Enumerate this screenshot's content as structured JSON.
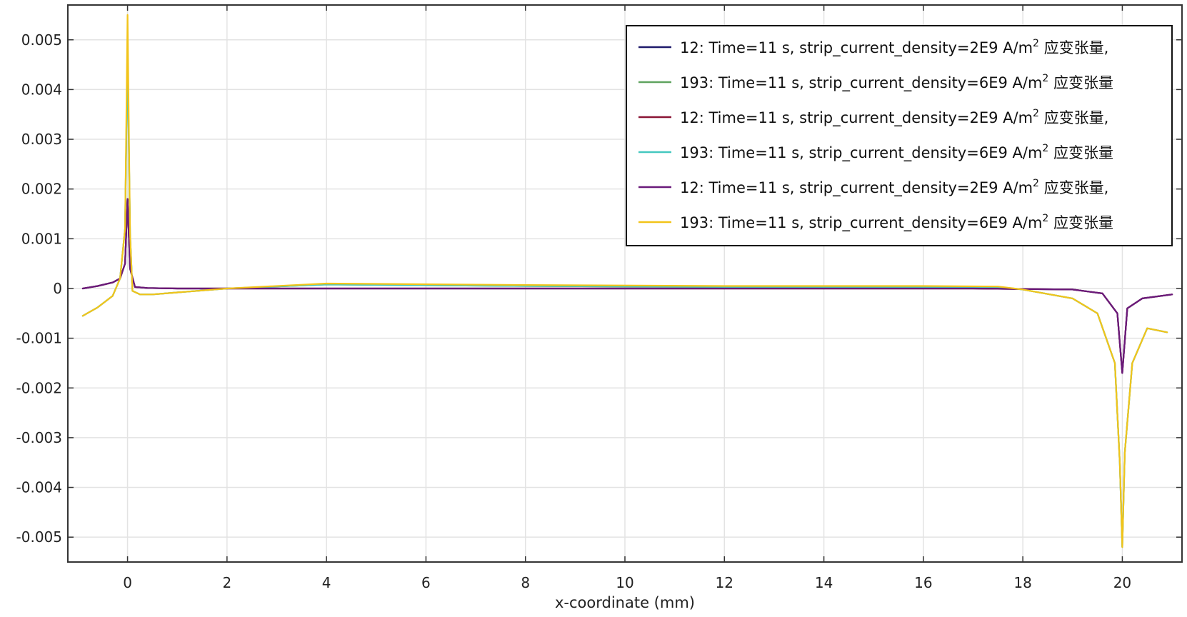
{
  "chart_data": {
    "type": "line",
    "title": "",
    "xlabel": "x-coordinate (mm)",
    "ylabel": "",
    "xlim": [
      -1.2,
      21.2
    ],
    "ylim": [
      -0.0055,
      0.0057
    ],
    "x_ticks": [
      0,
      2,
      4,
      6,
      8,
      10,
      12,
      14,
      16,
      18,
      20
    ],
    "x_tick_labels": [
      "0",
      "2",
      "4",
      "6",
      "8",
      "10",
      "12",
      "14",
      "16",
      "18",
      "20"
    ],
    "y_ticks": [
      0.005,
      0.004,
      0.003,
      0.002,
      0.001,
      0,
      -0.001,
      -0.002,
      -0.003,
      -0.004,
      -0.005
    ],
    "y_tick_labels": [
      "0.005",
      "0.004",
      "0.003",
      "0.002",
      "0.001",
      "0",
      "-0.001",
      "-0.002",
      "-0.003",
      "-0.004",
      "-0.005"
    ],
    "grid": true,
    "legend_position": "top-right",
    "series": [
      {
        "name": "12: Time=11 s, strip_current_density=2E9 A/m",
        "name_sup": "2",
        "name_suffix": " 应变张量,",
        "color": "#1f1a6b",
        "x": [
          -0.9,
          -0.6,
          -0.3,
          -0.15,
          -0.05,
          0,
          0.05,
          0.15,
          0.4,
          1,
          3,
          10,
          17,
          19,
          19.6,
          19.9,
          20,
          20.1,
          20.4,
          21
        ],
        "y": [
          0,
          5e-05,
          0.00012,
          0.0002,
          0.0005,
          0.0018,
          0.0004,
          3e-05,
          1e-05,
          0,
          0,
          0,
          0,
          -2e-05,
          -0.0001,
          -0.0005,
          -0.0017,
          -0.0004,
          -0.0002,
          -0.00012
        ]
      },
      {
        "name": "193: Time=11 s, strip_current_density=6E9 A/m",
        "name_sup": "2",
        "name_suffix": " 应变张量",
        "color": "#5fa35f",
        "x": [
          -0.9,
          -0.6,
          -0.3,
          -0.15,
          -0.05,
          0,
          0.05,
          0.1,
          0.25,
          0.5,
          1,
          2,
          4,
          8,
          12,
          16,
          17.5,
          18,
          19,
          19.5,
          19.85,
          19.95,
          20,
          20.05,
          20.2,
          20.5,
          20.9
        ],
        "y": [
          -0.00055,
          -0.00038,
          -0.00015,
          0.0002,
          0.0012,
          0.0048,
          0.0011,
          -5e-05,
          -0.00012,
          -0.00012,
          -8e-05,
          0,
          8e-05,
          5e-05,
          3e-05,
          3e-05,
          3e-05,
          -2e-05,
          -0.0002,
          -0.0005,
          -0.0015,
          -0.0035,
          -0.0052,
          -0.0033,
          -0.0015,
          -0.0008,
          -0.00088
        ]
      },
      {
        "name": "12: Time=11 s, strip_current_density=2E9 A/m",
        "name_sup": "2",
        "name_suffix": " 应变张量,",
        "color": "#8a1535",
        "x": [
          -0.9,
          -0.6,
          -0.3,
          -0.15,
          -0.05,
          0,
          0.05,
          0.15,
          0.4,
          1,
          3,
          10,
          17,
          19,
          19.6,
          19.9,
          20,
          20.1,
          20.4,
          21
        ],
        "y": [
          0,
          5e-05,
          0.00012,
          0.0002,
          0.0005,
          0.0018,
          0.0004,
          3e-05,
          1e-05,
          0,
          0,
          0,
          0,
          -2e-05,
          -0.0001,
          -0.0005,
          -0.0017,
          -0.0004,
          -0.0002,
          -0.00012
        ]
      },
      {
        "name": "193: Time=11 s, strip_current_density=6E9 A/m",
        "name_sup": "2",
        "name_suffix": " 应变张量",
        "color": "#45c8c0",
        "x": [
          -0.9,
          -0.6,
          -0.3,
          -0.15,
          -0.05,
          0,
          0.05,
          0.1,
          0.25,
          0.5,
          1,
          2,
          4,
          8,
          12,
          16,
          17.5,
          18,
          19,
          19.5,
          19.85,
          19.95,
          20,
          20.05,
          20.2,
          20.5,
          20.9
        ],
        "y": [
          -0.00055,
          -0.00038,
          -0.00015,
          0.0002,
          0.0012,
          0.0048,
          0.0011,
          -5e-05,
          -0.00012,
          -0.00012,
          -8e-05,
          0,
          8e-05,
          5e-05,
          3e-05,
          3e-05,
          3e-05,
          -2e-05,
          -0.0002,
          -0.0005,
          -0.0015,
          -0.0035,
          -0.0052,
          -0.0033,
          -0.0015,
          -0.0008,
          -0.00088
        ]
      },
      {
        "name": "12: Time=11 s, strip_current_density=2E9 A/m",
        "name_sup": "2",
        "name_suffix": " 应变张量,",
        "color": "#6a1a7a",
        "x": [
          -0.9,
          -0.6,
          -0.3,
          -0.15,
          -0.05,
          0,
          0.05,
          0.15,
          0.4,
          1,
          3,
          10,
          17,
          19,
          19.6,
          19.9,
          20,
          20.1,
          20.4,
          21
        ],
        "y": [
          0,
          5e-05,
          0.00012,
          0.0002,
          0.0005,
          0.0018,
          0.0004,
          3e-05,
          1e-05,
          0,
          0,
          0,
          0,
          -2e-05,
          -0.0001,
          -0.0005,
          -0.0017,
          -0.0004,
          -0.0002,
          -0.00012
        ]
      },
      {
        "name": "193: Time=11 s, strip_current_density=6E9 A/m",
        "name_sup": "2",
        "name_suffix": " 应变张量",
        "color": "#f2c41a",
        "x": [
          -0.9,
          -0.6,
          -0.3,
          -0.15,
          -0.05,
          0,
          0.05,
          0.1,
          0.25,
          0.5,
          1,
          2,
          4,
          8,
          12,
          16,
          17.5,
          18,
          19,
          19.5,
          19.85,
          19.95,
          20,
          20.05,
          20.2,
          20.5,
          20.9
        ],
        "y": [
          -0.00055,
          -0.00038,
          -0.00015,
          0.0002,
          0.0012,
          0.0055,
          0.0011,
          -5e-05,
          -0.00012,
          -0.00012,
          -8e-05,
          0,
          0.0001,
          7e-05,
          5e-05,
          5e-05,
          4e-05,
          -2e-05,
          -0.0002,
          -0.0005,
          -0.0015,
          -0.0035,
          -0.0052,
          -0.0033,
          -0.0015,
          -0.0008,
          -0.00088
        ]
      }
    ]
  }
}
